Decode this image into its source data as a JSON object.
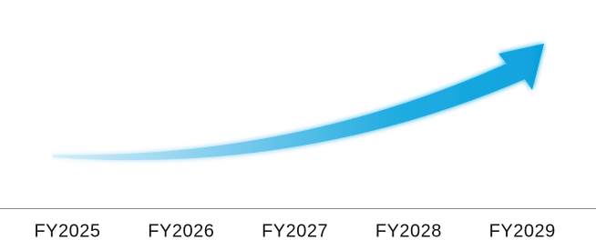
{
  "axis": {
    "labels": [
      "FY2025",
      "FY2026",
      "FY2027",
      "FY2028",
      "FY2029"
    ]
  }
}
